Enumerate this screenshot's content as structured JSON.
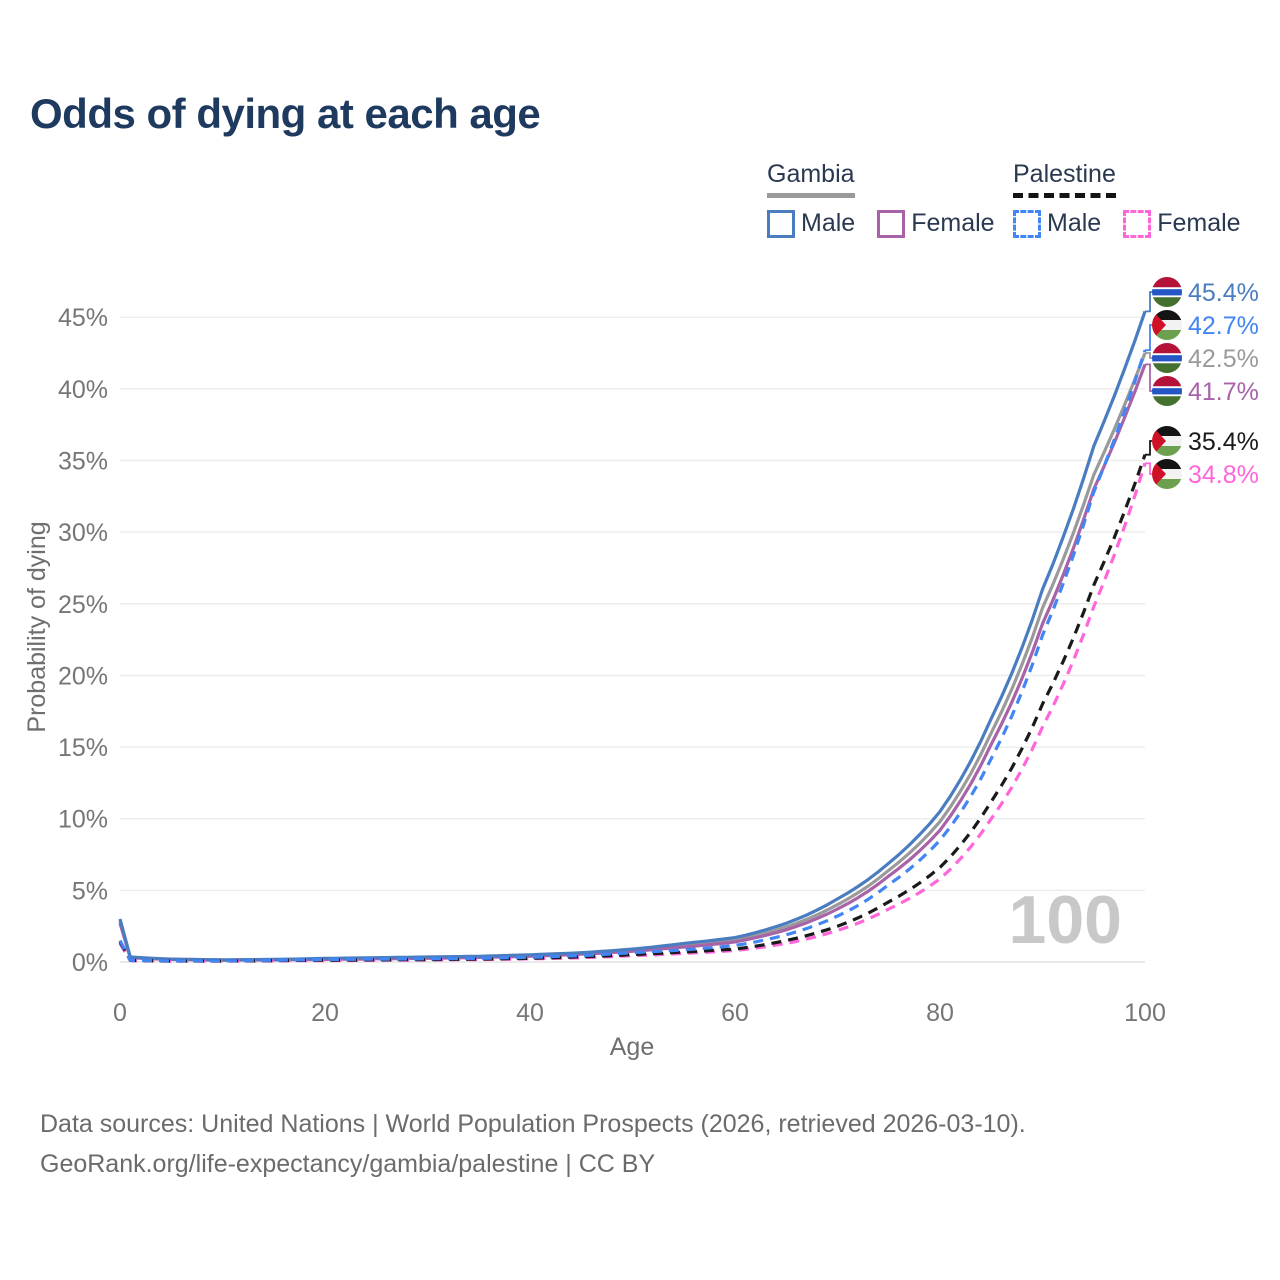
{
  "title": "Odds of dying at each age",
  "legend": {
    "groups": [
      {
        "id": "gambia",
        "label": "Gambia",
        "line_style": "solid",
        "underline_color": "#9a9a9a",
        "items": [
          {
            "label": "Male",
            "color": "#4a7cc0"
          },
          {
            "label": "Female",
            "color": "#a863a8"
          }
        ]
      },
      {
        "id": "palestine",
        "label": "Palestine",
        "line_style": "dashed",
        "underline_color": "#141414",
        "items": [
          {
            "label": "Male",
            "color": "#4285f4"
          },
          {
            "label": "Female",
            "color": "#ff66d9"
          }
        ]
      }
    ]
  },
  "watermark_age": "100",
  "footer": {
    "line1": "Data sources: United Nations | World Population Prospects (2026, retrieved 2026-03-10).",
    "line2": "GeoRank.org/life-expectancy/gambia/palestine | CC BY"
  },
  "chart_data": {
    "type": "line",
    "title": "Odds of dying at each age",
    "xlabel": "Age",
    "ylabel": "Probability of dying",
    "xlim": [
      0,
      100
    ],
    "ylim_percent": [
      0,
      47
    ],
    "x_ticks": [
      0,
      20,
      40,
      60,
      80,
      100
    ],
    "y_ticks_percent": [
      0,
      5,
      10,
      15,
      20,
      25,
      30,
      35,
      40,
      45
    ],
    "y_axis_format": "percent",
    "grid": "horizontal",
    "legend_position": "top-right",
    "watermark": "100",
    "x_ages": [
      0,
      1,
      5,
      10,
      15,
      20,
      25,
      30,
      35,
      40,
      45,
      50,
      55,
      60,
      65,
      70,
      75,
      80,
      85,
      90,
      95,
      100
    ],
    "series": [
      {
        "name": "Gambia Both sexes",
        "country": "Gambia",
        "sex": "Both",
        "color": "#9a9a9a",
        "dash": "solid",
        "end_label": "42.5%",
        "end_value_percent": 42.5,
        "values_percent": [
          2.85,
          0.32,
          0.19,
          0.14,
          0.16,
          0.21,
          0.26,
          0.3,
          0.36,
          0.45,
          0.6,
          0.82,
          1.15,
          1.5,
          2.45,
          4.0,
          6.4,
          9.8,
          16.0,
          24.7,
          34.0,
          42.5
        ]
      },
      {
        "name": "Gambia Female",
        "country": "Gambia",
        "sex": "Female",
        "color": "#a863a8",
        "dash": "solid",
        "end_label": "41.7%",
        "end_value_percent": 41.7,
        "values_percent": [
          2.7,
          0.3,
          0.18,
          0.13,
          0.15,
          0.18,
          0.22,
          0.26,
          0.32,
          0.4,
          0.55,
          0.75,
          1.05,
          1.4,
          2.25,
          3.7,
          6.0,
          9.2,
          15.2,
          23.6,
          33.0,
          41.7
        ]
      },
      {
        "name": "Gambia Male",
        "country": "Gambia",
        "sex": "Male",
        "color": "#4a7cc0",
        "dash": "solid",
        "end_label": "45.4%",
        "end_value_percent": 45.4,
        "values_percent": [
          3.0,
          0.35,
          0.2,
          0.15,
          0.18,
          0.25,
          0.3,
          0.35,
          0.4,
          0.5,
          0.65,
          0.9,
          1.3,
          1.7,
          2.7,
          4.4,
          6.9,
          10.5,
          17.0,
          26.0,
          36.0,
          45.4
        ]
      },
      {
        "name": "Palestine Female",
        "country": "Palestine",
        "sex": "Female",
        "color": "#ff66d9",
        "dash": "dashed",
        "end_label": "34.8%",
        "end_value_percent": 34.8,
        "values_percent": [
          1.3,
          0.1,
          0.06,
          0.06,
          0.08,
          0.1,
          0.12,
          0.14,
          0.17,
          0.22,
          0.3,
          0.44,
          0.6,
          0.8,
          1.3,
          2.2,
          3.7,
          5.8,
          10.0,
          16.4,
          24.8,
          34.8
        ]
      },
      {
        "name": "Palestine Both sexes",
        "country": "Palestine",
        "sex": "Both",
        "color": "#1a1a1a",
        "dash": "dashed",
        "end_label": "35.4%",
        "end_value_percent": 35.4,
        "values_percent": [
          1.4,
          0.11,
          0.07,
          0.07,
          0.1,
          0.13,
          0.15,
          0.17,
          0.2,
          0.26,
          0.36,
          0.52,
          0.7,
          0.9,
          1.5,
          2.5,
          4.2,
          6.6,
          11.2,
          18.0,
          26.3,
          35.4
        ]
      },
      {
        "name": "Palestine Male",
        "country": "Palestine",
        "sex": "Male",
        "color": "#4285f4",
        "dash": "dashed",
        "end_label": "42.7%",
        "end_value_percent": 42.7,
        "values_percent": [
          1.5,
          0.12,
          0.08,
          0.08,
          0.12,
          0.18,
          0.2,
          0.22,
          0.26,
          0.33,
          0.45,
          0.65,
          0.85,
          1.15,
          1.9,
          3.2,
          5.4,
          8.5,
          14.2,
          22.8,
          32.8,
          42.7
        ]
      }
    ]
  }
}
